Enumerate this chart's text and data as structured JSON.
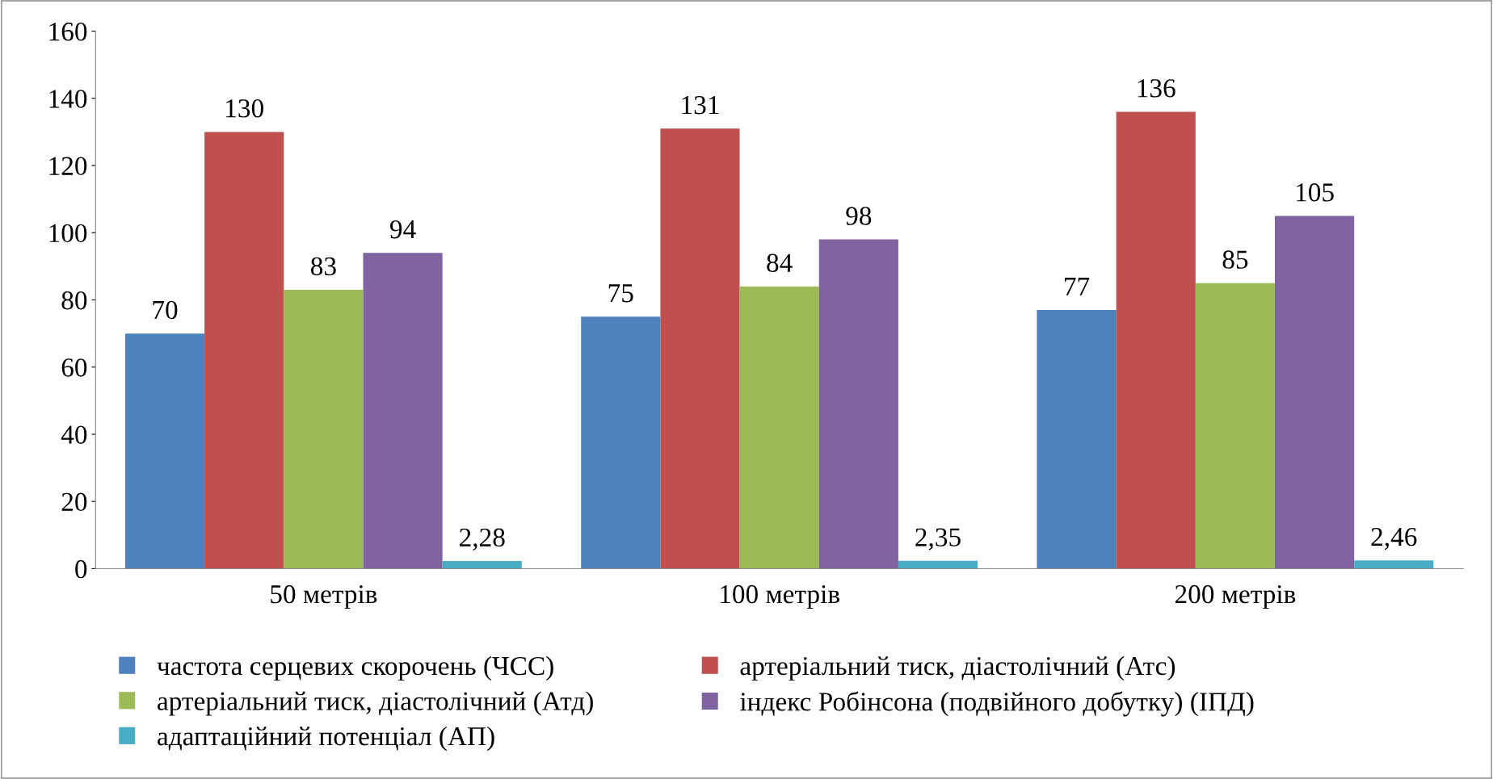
{
  "chart_data": {
    "type": "bar",
    "categories": [
      "50 метрів",
      "100 метрів",
      "200 метрів"
    ],
    "series": [
      {
        "name": "частота серцевих скорочень (ЧСС)",
        "color": "#4f81bd",
        "values": [
          70,
          75,
          77
        ],
        "value_labels": [
          "70",
          "75",
          "77"
        ]
      },
      {
        "name": "артеріальний тиск, діастолічний (Атс)",
        "color": "#c0504d",
        "values": [
          130,
          131,
          136
        ],
        "value_labels": [
          "130",
          "131",
          "136"
        ]
      },
      {
        "name": "артеріальний тиск, діастолічний (Атд)",
        "color": "#9bbb59",
        "values": [
          83,
          84,
          85
        ],
        "value_labels": [
          "83",
          "84",
          "85"
        ]
      },
      {
        "name": "індекс Робінсона (подвійного добутку) (ІПД)",
        "color": "#8064a2",
        "values": [
          94,
          98,
          105
        ],
        "value_labels": [
          "94",
          "98",
          "105"
        ]
      },
      {
        "name": "адаптаційний потенціал (АП)",
        "color": "#4bacc6",
        "values": [
          2.28,
          2.35,
          2.46
        ],
        "value_labels": [
          "2,28",
          "2,35",
          "2,46"
        ]
      }
    ],
    "ylim": [
      0,
      160
    ],
    "yticks": [
      0,
      20,
      40,
      60,
      80,
      100,
      120,
      140,
      160
    ],
    "grid": false,
    "legend": "bottom"
  }
}
